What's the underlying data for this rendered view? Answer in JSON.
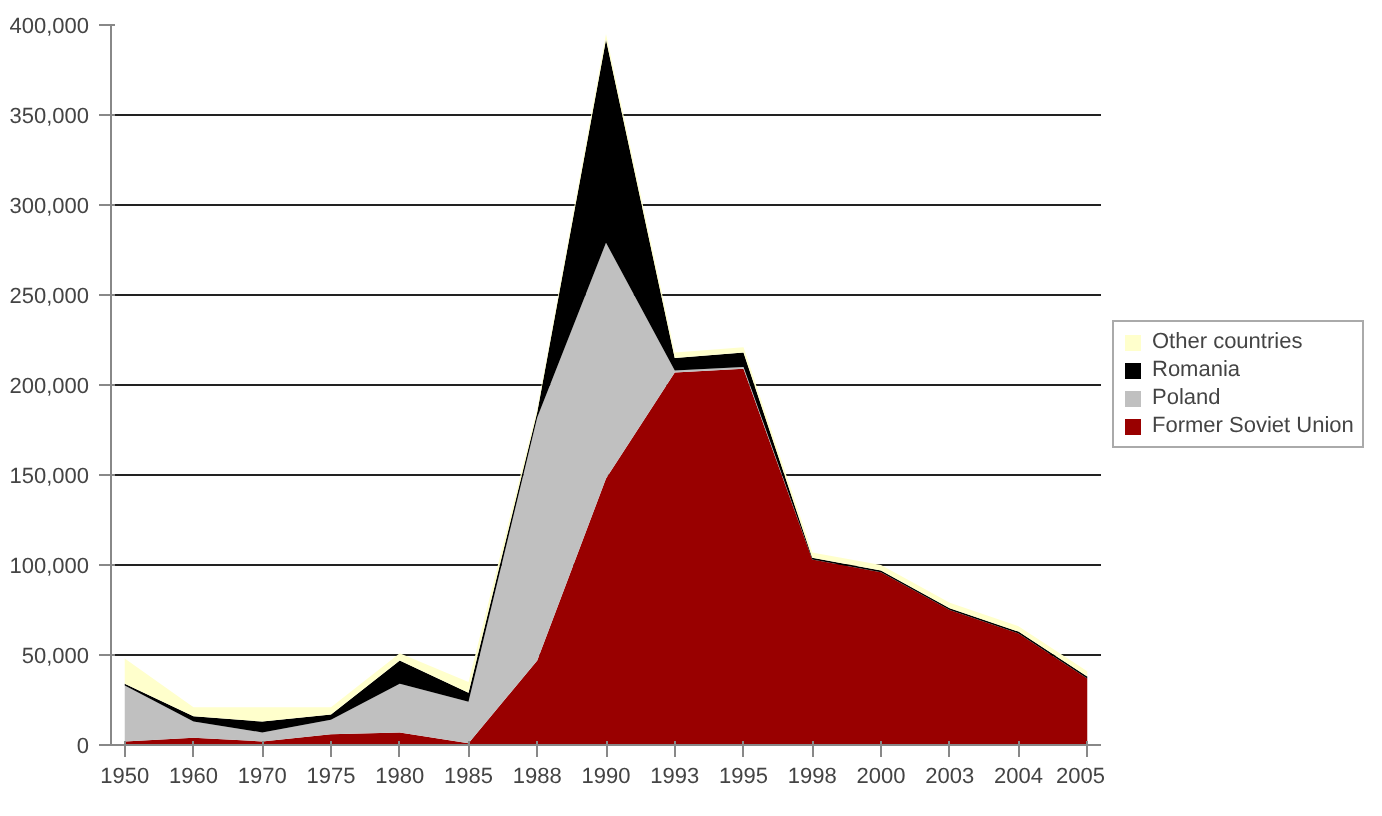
{
  "chart_data": {
    "type": "area",
    "stacked": true,
    "categories": [
      "1950",
      "1960",
      "1970",
      "1975",
      "1980",
      "1985",
      "1988",
      "1990",
      "1993",
      "1995",
      "1998",
      "2000",
      "2003",
      "2004",
      "2005"
    ],
    "series": [
      {
        "name": "Former Soviet Union",
        "color": "#990000",
        "values": [
          2000,
          4000,
          2000,
          6000,
          7000,
          1000,
          47000,
          148000,
          207000,
          209000,
          103000,
          96000,
          75000,
          62000,
          37000
        ]
      },
      {
        "name": "Poland",
        "color": "#c0c0c0",
        "values": [
          31000,
          9000,
          5000,
          8000,
          27000,
          23000,
          135000,
          131000,
          1000,
          1000,
          0,
          0,
          0,
          0,
          0
        ]
      },
      {
        "name": "Romania",
        "color": "#000000",
        "values": [
          1000,
          3000,
          6000,
          3000,
          13000,
          5000,
          3000,
          113000,
          7000,
          8000,
          1000,
          1000,
          1000,
          1000,
          1000
        ]
      },
      {
        "name": "Other countries",
        "color": "#ffffcc",
        "values": [
          14000,
          5000,
          8000,
          4000,
          4000,
          6000,
          2000,
          3000,
          3000,
          3000,
          3000,
          3000,
          3000,
          3000,
          3000
        ]
      }
    ],
    "ylim": [
      0,
      400000
    ],
    "yticks": [
      {
        "value": 0,
        "label": "0"
      },
      {
        "value": 50000,
        "label": "50,000"
      },
      {
        "value": 100000,
        "label": "100,000"
      },
      {
        "value": 150000,
        "label": "150,000"
      },
      {
        "value": 200000,
        "label": "200,000"
      },
      {
        "value": 250000,
        "label": "250,000"
      },
      {
        "value": 300000,
        "label": "300,000"
      },
      {
        "value": 350000,
        "label": "350,000"
      },
      {
        "value": 400000,
        "label": "400,000"
      }
    ],
    "grid": "y",
    "legend": "right"
  }
}
